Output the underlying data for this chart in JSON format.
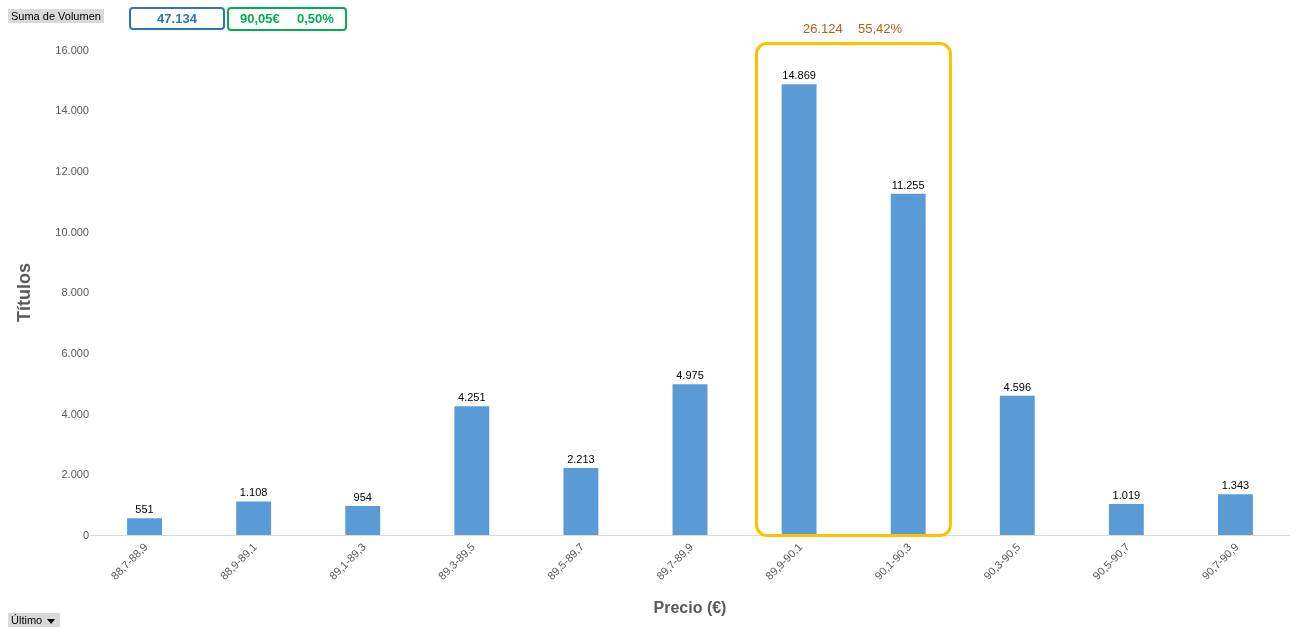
{
  "chart_data": {
    "type": "bar",
    "xlabel": "Precio (€)",
    "ylabel": "Títulos",
    "categories": [
      "88,7-88,9",
      "88,9-89,1",
      "89,1-89,3",
      "89,3-89,5",
      "89,5-89,7",
      "89,7-89,9",
      "89,9-90,1",
      "90,1-90,3",
      "90,3-90,5",
      "90,5-90,7",
      "90,7-90,9"
    ],
    "values": [
      551,
      1108,
      954,
      4251,
      2213,
      4975,
      14869,
      11255,
      4596,
      1019,
      1343
    ],
    "value_labels": [
      "551",
      "1.108",
      "954",
      "4.251",
      "2.213",
      "4.975",
      "14.869",
      "11.255",
      "4.596",
      "1.019",
      "1.343"
    ],
    "color": "#5b9bd5",
    "ylim": [
      0,
      16000
    ],
    "yticks": [
      0,
      {
        "value": 2000,
        "label": "2.000"
      },
      {
        "value": 4000,
        "label": "4.000"
      },
      {
        "value": 6000,
        "label": "6.000"
      },
      {
        "value": 8000,
        "label": "8.000"
      },
      {
        "value": 10000,
        "label": "10.000"
      },
      {
        "value": 12000,
        "label": "12.000"
      },
      {
        "value": 14000,
        "label": "14.000"
      },
      {
        "value": 16000,
        "label": "16.000"
      }
    ],
    "grid": false,
    "legend": false,
    "annotations": [
      "Suma de Volumen",
      "47.134",
      "90,05€",
      "0,50%",
      "Último",
      "26.124",
      "55,42%"
    ]
  }
}
